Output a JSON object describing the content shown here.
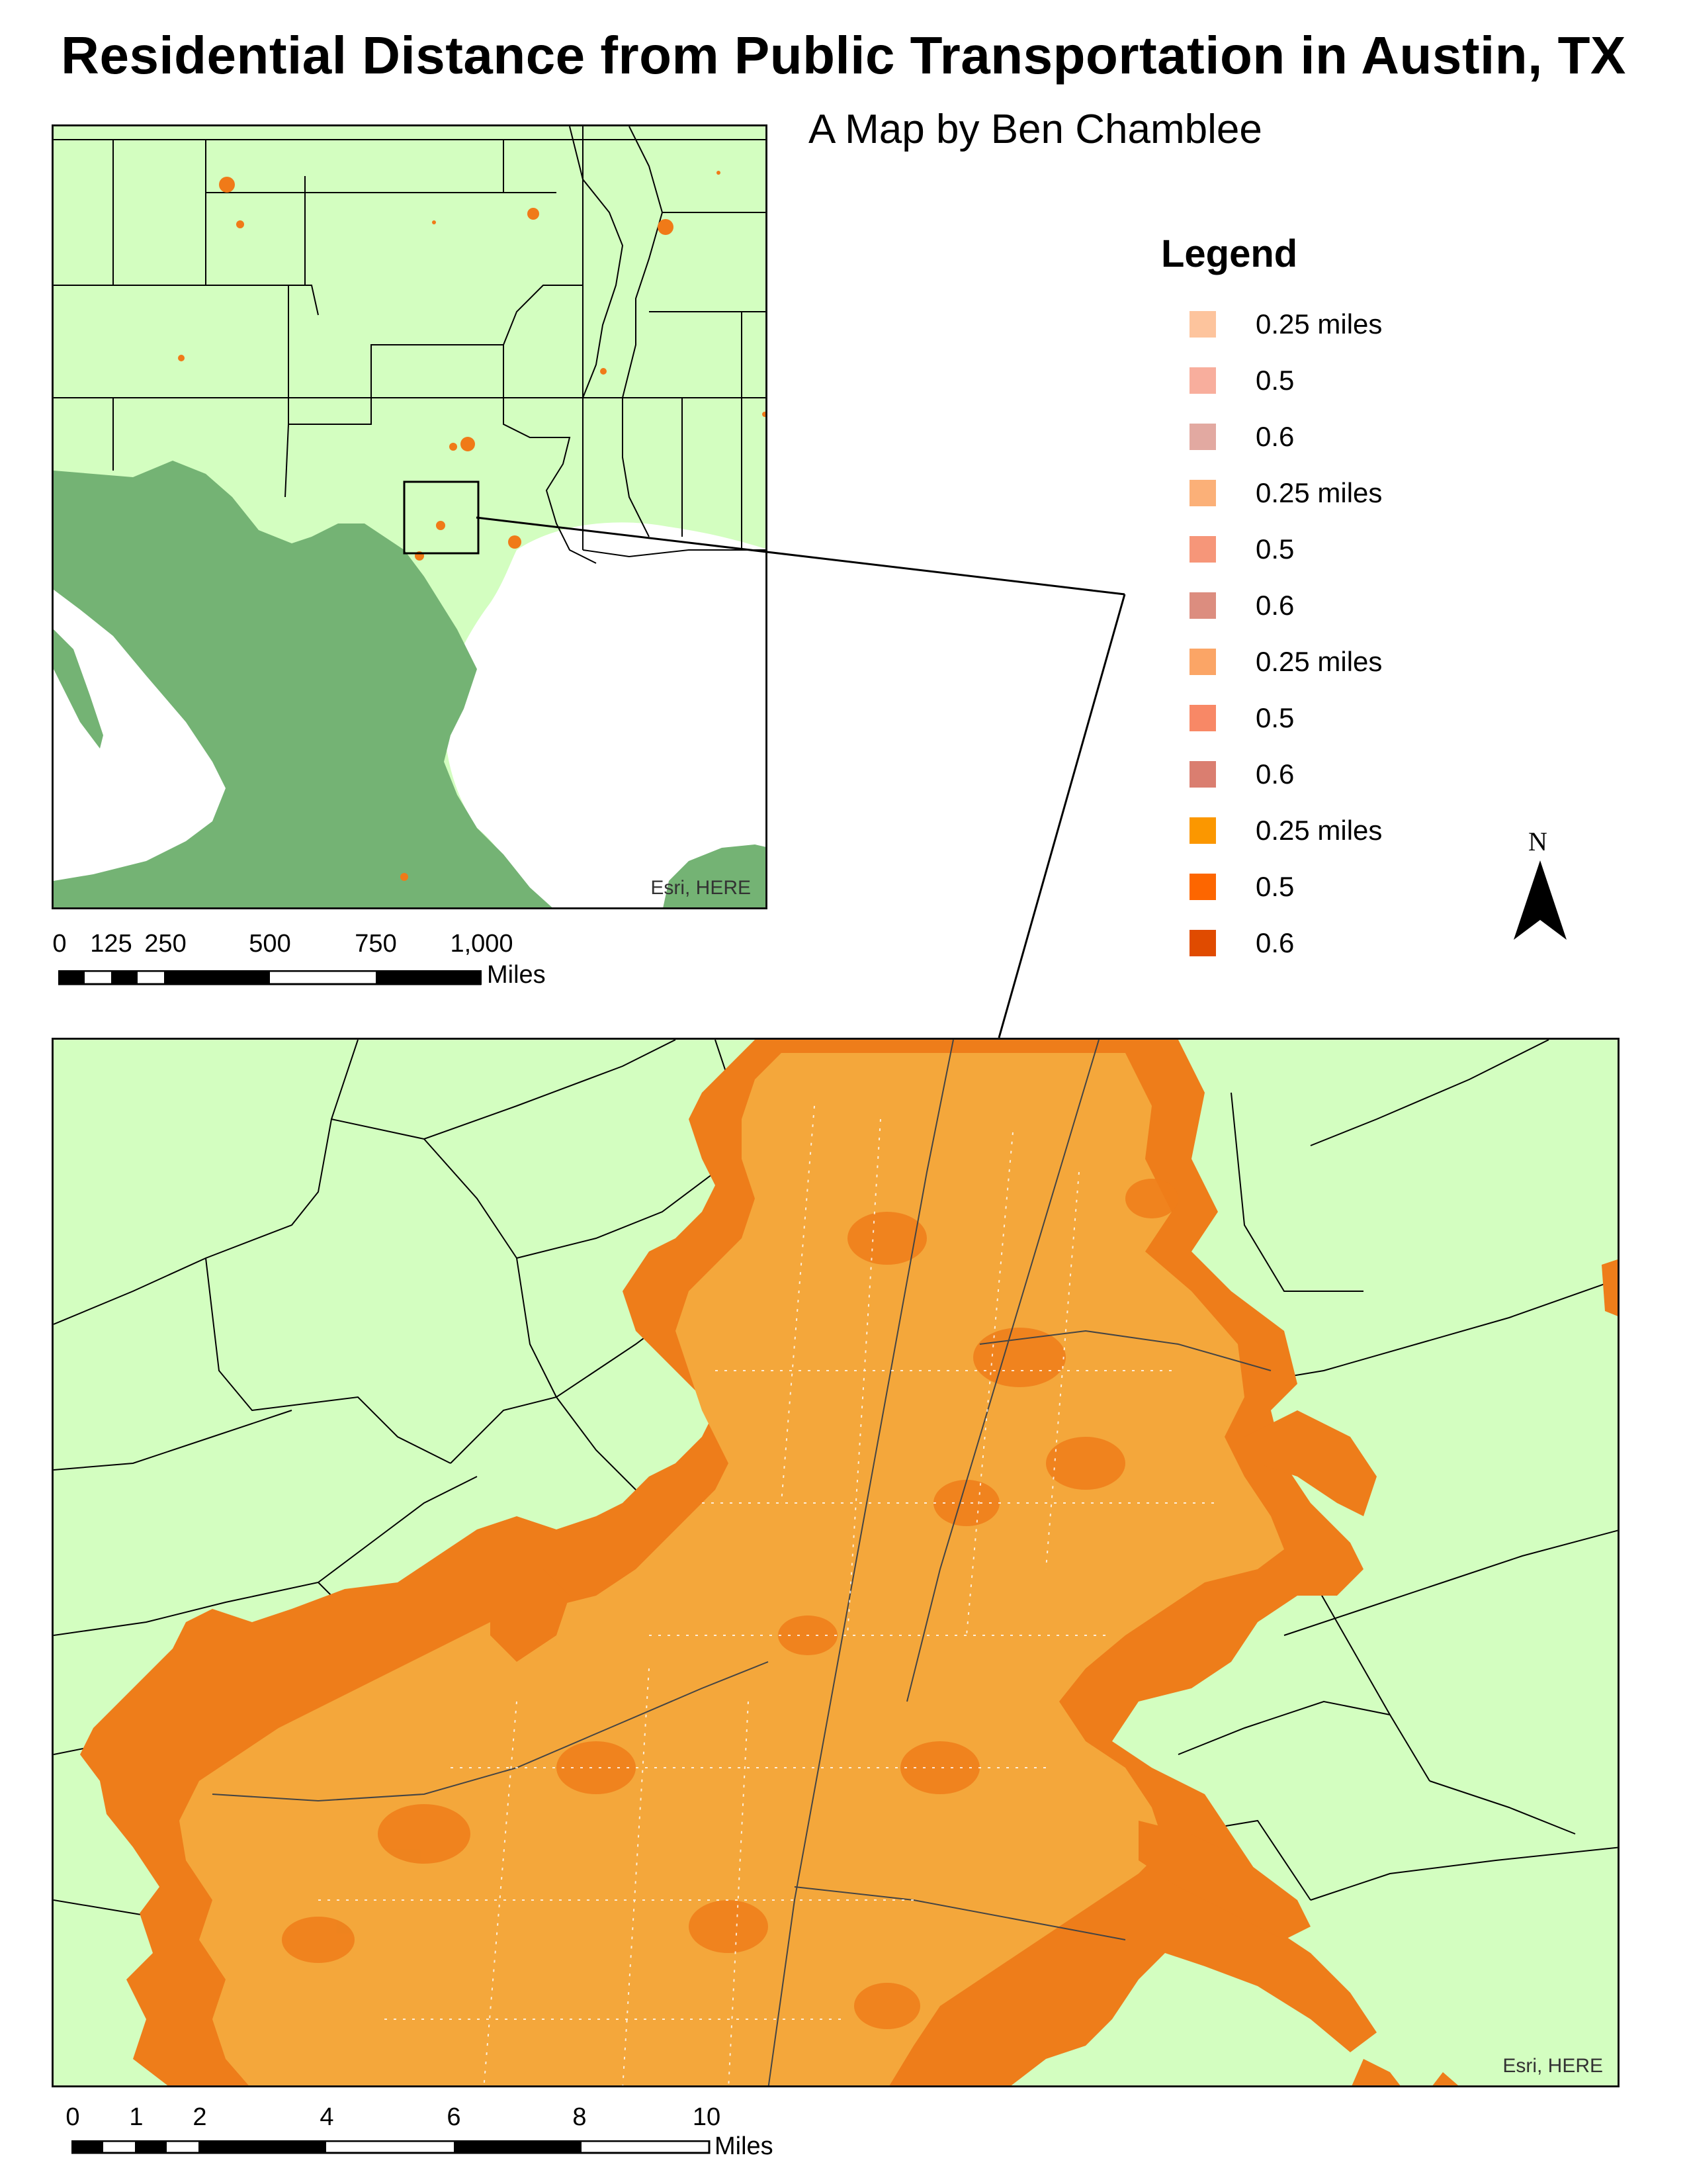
{
  "title": "Residential Distance from Public Transportation in Austin, TX",
  "subtitle": "A Map by Ben Chamblee",
  "legend": {
    "title": "Legend",
    "items": [
      {
        "label": "0.25 miles",
        "color": "#fdc49d"
      },
      {
        "label": "0.5",
        "color": "#f8ae9d"
      },
      {
        "label": "0.6",
        "color": "#e2a9a1"
      },
      {
        "label": "0.25 miles",
        "color": "#fbb078"
      },
      {
        "label": "0.5",
        "color": "#f69679"
      },
      {
        "label": "0.6",
        "color": "#dc8d7f"
      },
      {
        "label": "0.25 miles",
        "color": "#fba566"
      },
      {
        "label": "0.5",
        "color": "#f88866"
      },
      {
        "label": "0.6",
        "color": "#da7e70"
      },
      {
        "label": "0.25 miles",
        "color": "#fb9700"
      },
      {
        "label": "0.5",
        "color": "#fd6600"
      },
      {
        "label": "0.6",
        "color": "#e04b00"
      }
    ]
  },
  "inset_map": {
    "credit": "Esri, HERE",
    "scale_bar": {
      "ticks": [
        "0",
        "125",
        "250",
        "500",
        "750",
        "1,000"
      ],
      "unit": "Miles"
    }
  },
  "main_map": {
    "credit": "Esri, HERE",
    "scale_bar": {
      "ticks": [
        "0",
        "1",
        "2",
        "4",
        "6",
        "8",
        "10"
      ],
      "unit": "Miles"
    }
  },
  "north_arrow": {
    "letter": "N"
  },
  "colors": {
    "us_land": "#d3fec0",
    "mexico_land": "#74b374",
    "water": "#ffffff",
    "coverage_light": "#f4a73b",
    "coverage_dark": "#ee7d1a"
  }
}
